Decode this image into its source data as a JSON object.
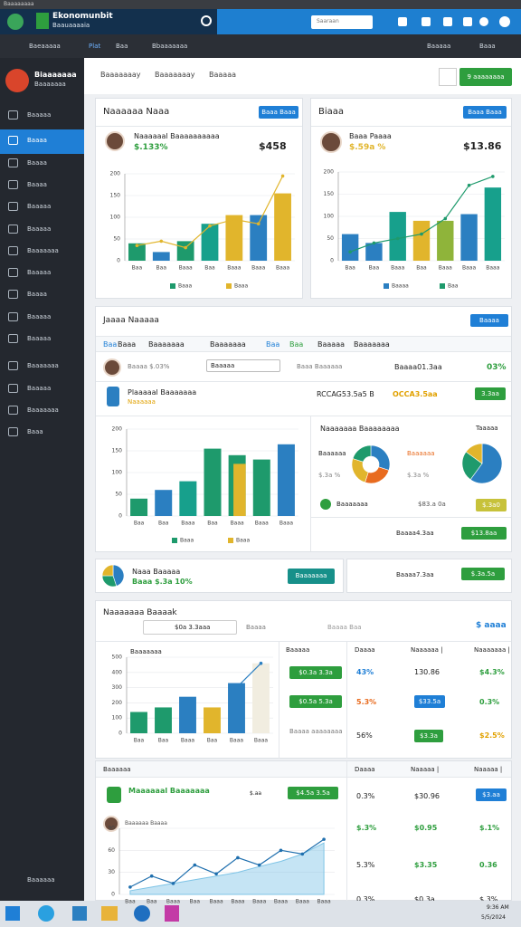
{
  "window_title": "Baaaaaaaa",
  "header": {
    "app_name": "Ekonomunbit",
    "app_subtitle": "Baauaaaaia",
    "search_placeholder": "Saaraan"
  },
  "nav": {
    "items": [
      "Baeaaaaa",
      "Plat",
      "Baa",
      "Bbaaaaaaa"
    ],
    "right": [
      "Baaaaa",
      "Baaa"
    ]
  },
  "sidebar": {
    "brand": "Biaaaaaaa",
    "brand_sub": "Baaaaaaa",
    "items": [
      "Baaaaa",
      "Baaaa",
      "Baaaa",
      "Baaaa",
      "Baaaaa",
      "Baaaaa",
      "Baaaaaaa",
      "Baaaaa",
      "Baaaa",
      "Baaaaa",
      "Baaaaa",
      "Baaaaaaa",
      "Baaaaa",
      "Baaaaaaa",
      "Baaa"
    ],
    "footer": "Baaaaaa"
  },
  "tabs": {
    "items": [
      "Baaaaaaay",
      "Baaaaaaay",
      "Baaaaa"
    ],
    "button": "9 aaaaaaaa"
  },
  "cards": [
    {
      "title": "Naaaaaa Naaa",
      "button": "Baaa Baaa",
      "person": "Naaaaaal Baaaaaaaaaa",
      "change": "$.133%",
      "amount": "$458"
    },
    {
      "title": "Biaaa",
      "button": "Baaa Baaa",
      "person": "Baaa Paaaa",
      "change": "$.59a %",
      "amount": "$13.86"
    }
  ],
  "section1": {
    "title": "Jaaaa Naaaaa",
    "button": "Baaaa",
    "columns": [
      "Baa",
      "Baaa",
      "Baaaaaaa",
      "Baaaaaaa",
      "Baa",
      "Baa",
      "Baaaaa",
      "Baaaaaaa"
    ],
    "row1": {
      "sub": "Baaaa $.03%",
      "select": "Baaaaa",
      "label": "Baaa Baaaaaa",
      "amount": "Baaaa01.3aa",
      "pct": "03%"
    },
    "row2": {
      "name": "Plaaaaal Baaaaaaa",
      "sub": "Naaaaaa",
      "code": "RCCAG53.5a5 B",
      "amount": "OCCA3.5aa",
      "badge": "3.3aa"
    },
    "panel_title": "Naaaaaaa Baaaaaaaa",
    "panel_right": "Taaaaa",
    "donut_label": "Baaaaaa",
    "donut_sub": "$.3a %",
    "donut_sub2": "$.3a %",
    "item": "Baaaaaaa",
    "item_value": "$83.a 0a",
    "badge1": "$.3a0",
    "item2_value": "Baaaa4.3aa",
    "badge2": "$13.8aa"
  },
  "row_card": {
    "title": "Naaa Baaaaa",
    "sub": "Baaa $.3a 10%",
    "button": "Baaaaaaa",
    "amount": "Baaaa7.3aa",
    "badge": "$.3a.5a"
  },
  "section2": {
    "title": "Naaaaaaa Baaaak",
    "input": "$0a 3.3aaa",
    "action": "Baaaa",
    "filter": "Baaaa Baa",
    "right": "$ aaaa",
    "chart_title": "Baaaaaaa",
    "columns": [
      "Baaaaa",
      "Daaaa",
      "Naaaaaa |",
      "Naaaaaaa |"
    ],
    "rows": [
      [
        "$0.3a 3.3a",
        "43%",
        "130.86",
        "$4.3%"
      ],
      [
        "$0.5a 5.3a",
        "5.3%",
        "$33.5a",
        "0.3%"
      ],
      [
        "Baaaa aaaaaaaa",
        "56%",
        "$3.3a",
        "$2.5%"
      ]
    ]
  },
  "section3": {
    "columns": [
      "Baaaaaa",
      "Daaaa",
      "Naaaaa |",
      "Naaaaa |"
    ],
    "person": "Maaaaaal Baaaaaaa",
    "person_tag": "$.aa",
    "badge": "$4.5a 3.5a",
    "person2": "Baaaaaa Baaaa",
    "rows": [
      [
        "0.3%",
        "$30.96",
        "$3.aa"
      ],
      [
        "$.3%",
        "$0.95",
        "$.1%"
      ],
      [
        "5.3%",
        "$3.35",
        "0.36"
      ],
      [
        "0.3%",
        "$0.3a",
        "$.3%"
      ]
    ]
  },
  "taskbar": {
    "clock": "9:36 AM",
    "date": "5/5/2024"
  },
  "chart_data": [
    {
      "type": "bar",
      "categories": [
        "Baa",
        "Baa",
        "Baaa",
        "Baa",
        "Baaa",
        "Baaa",
        "Baaa"
      ],
      "ylim": [
        0,
        200
      ],
      "yticks": [
        0,
        50,
        100,
        150,
        200
      ],
      "series": [
        {
          "name": "Baaa",
          "color": "#1e9a6c",
          "colors": [
            "#1e9a6c",
            "#2b7fc1",
            "#1e9a6c",
            "#17a08c",
            "#e1b52c",
            "#2b7fc1",
            "#e1b52c"
          ],
          "values": [
            40,
            20,
            45,
            85,
            105,
            105,
            155
          ]
        },
        {
          "name": "Baaa",
          "color": "#e1b52c",
          "type": "line",
          "values": [
            35,
            45,
            30,
            80,
            95,
            85,
            195
          ]
        }
      ]
    },
    {
      "type": "bar",
      "categories": [
        "Baa",
        "Baa",
        "Baaa",
        "Baa",
        "Baaa",
        "Baaa",
        "Baaa"
      ],
      "ylim": [
        0,
        200
      ],
      "yticks": [
        0,
        50,
        100,
        150,
        200
      ],
      "series": [
        {
          "name": "Baaaa",
          "color": "#2b7fc1",
          "colors": [
            "#2b7fc1",
            "#2b7fc1",
            "#17a08c",
            "#e1b52c",
            "#8fb43a",
            "#2b7fc1",
            "#17a08c"
          ],
          "values": [
            60,
            40,
            110,
            90,
            90,
            105,
            165
          ]
        },
        {
          "name": "Baa",
          "color": "#1e9a6c",
          "type": "line",
          "values": [
            20,
            40,
            50,
            60,
            95,
            170,
            190
          ]
        }
      ]
    },
    {
      "type": "bar",
      "categories": [
        "Baa",
        "Baa",
        "Baaa",
        "Baa",
        "Baaa",
        "Baaa",
        "Baaa"
      ],
      "ylim": [
        0,
        200
      ],
      "yticks": [
        0,
        50,
        100,
        150,
        200
      ],
      "series": [
        {
          "name": "Baaa",
          "color": "#1e9a6c",
          "colors": [
            "#1e9a6c",
            "#2b7fc1",
            "#17a08c",
            "#1e9a6c",
            "#1e9a6c",
            "#1e9a6c",
            "#2b7fc1"
          ],
          "values": [
            40,
            60,
            80,
            155,
            140,
            130,
            165
          ]
        },
        {
          "name": "Baaa",
          "color": "#e1b52c",
          "type": "bar",
          "colors": [
            "#e1b52c",
            "#e1b52c",
            "#e1b52c",
            "#e1b52c",
            "#e1b52c",
            "#e1b52c",
            "#e1b52c"
          ],
          "values": [
            0,
            0,
            0,
            0,
            120,
            0,
            0
          ]
        }
      ]
    },
    {
      "type": "pie",
      "donut": true,
      "values": [
        30,
        25,
        25,
        20
      ],
      "colors": [
        "#2b7fc1",
        "#e86b1f",
        "#e1b52c",
        "#1e9a6c"
      ]
    },
    {
      "type": "pie",
      "donut": false,
      "values": [
        60,
        25,
        15
      ],
      "colors": [
        "#2b7fc1",
        "#1e9a6c",
        "#e1b52c"
      ]
    },
    {
      "type": "pie",
      "donut": false,
      "values": [
        45,
        30,
        25
      ],
      "colors": [
        "#2b7fc1",
        "#1e9a6c",
        "#e1b52c"
      ]
    },
    {
      "type": "bar",
      "categories": [
        "Baa",
        "Baa",
        "Baaa",
        "Baa",
        "Baaa",
        "Baaa"
      ],
      "ylim": [
        0,
        500
      ],
      "yticks": [
        0,
        100,
        200,
        300,
        400,
        500
      ],
      "series": [
        {
          "name": "Baaa",
          "color": "#1e9a6c",
          "colors": [
            "#1e9a6c",
            "#1e9a6c",
            "#2b7fc1",
            "#e1b52c",
            "#2b7fc1",
            "#f1ede0"
          ],
          "values": [
            140,
            170,
            240,
            170,
            330,
            460
          ]
        },
        {
          "name": "Baaa",
          "color": "#2b7fc1",
          "type": "line",
          "values": [
            null,
            null,
            null,
            null,
            300,
            460
          ]
        }
      ]
    },
    {
      "type": "area",
      "categories": [
        "Baa",
        "Baa",
        "Baaa",
        "Baa",
        "Baaa",
        "Baaa",
        "Baaa",
        "Baaa",
        "Baaa",
        "Baaa"
      ],
      "ylim": [
        0,
        90
      ],
      "yticks": [
        0,
        30,
        60,
        90
      ],
      "series": [
        {
          "name": "Baaa",
          "color": "#7ec4e6",
          "values": [
            5,
            10,
            15,
            20,
            25,
            30,
            38,
            45,
            55,
            70
          ]
        },
        {
          "name": "Baaa",
          "color": "#1f6fae",
          "type": "line",
          "values": [
            10,
            25,
            15,
            40,
            28,
            50,
            40,
            60,
            55,
            75
          ]
        }
      ]
    }
  ]
}
